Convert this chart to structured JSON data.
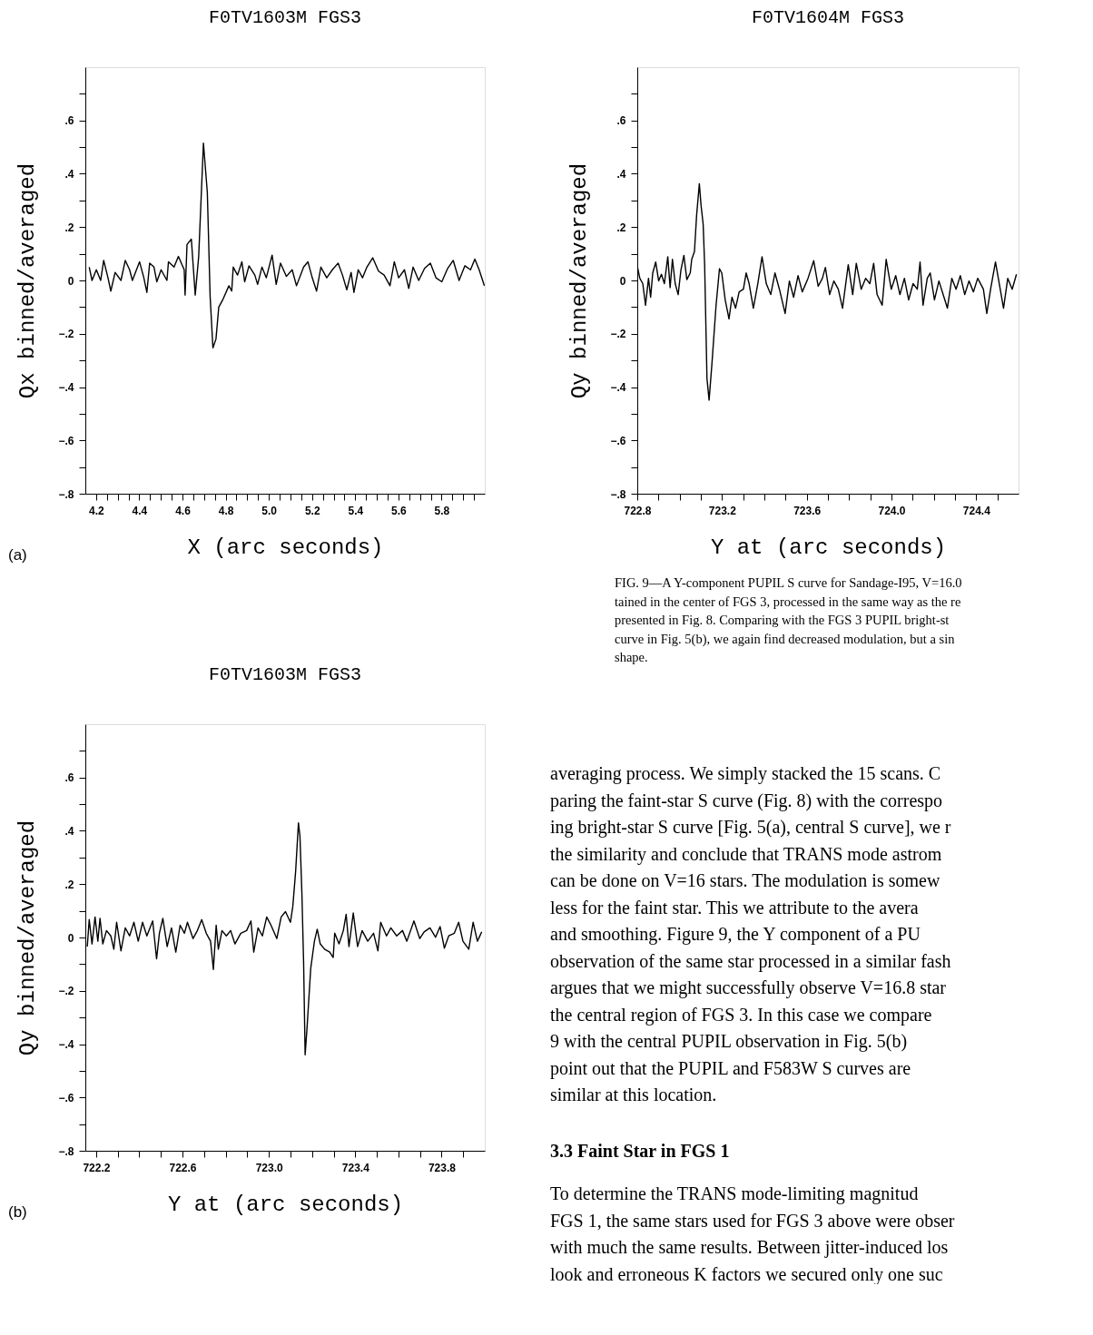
{
  "chart_data": [
    {
      "type": "line",
      "title": "F0TV1603M FGS3",
      "xlabel": "X (arc seconds)",
      "ylabel": "Qx binned/averaged",
      "annotations": [
        "(a)"
      ],
      "xlim": [
        4.15,
        6.0
      ],
      "ylim": [
        -0.8,
        0.8
      ],
      "xticks": [
        4.2,
        {
          "value": 4.25,
          "label": null
        },
        {
          "value": 4.3,
          "label": null
        },
        {
          "value": 4.35,
          "label": null
        },
        4.4,
        {
          "value": 4.45,
          "label": null
        },
        {
          "value": 4.5,
          "label": null
        },
        {
          "value": 4.55,
          "label": null
        },
        4.6,
        {
          "value": 4.65,
          "label": null
        },
        {
          "value": 4.7,
          "label": null
        },
        {
          "value": 4.75,
          "label": null
        },
        4.8,
        {
          "value": 4.85,
          "label": null
        },
        {
          "value": 4.9,
          "label": null
        },
        {
          "value": 4.95,
          "label": null
        },
        {
          "value": 5,
          "label": "5.0"
        },
        {
          "value": 5.05,
          "label": null
        },
        {
          "value": 5.1,
          "label": null
        },
        {
          "value": 5.15,
          "label": null
        },
        5.2,
        {
          "value": 5.25,
          "label": null
        },
        {
          "value": 5.3,
          "label": null
        },
        {
          "value": 5.35,
          "label": null
        },
        5.4,
        {
          "value": 5.45,
          "label": null
        },
        {
          "value": 5.5,
          "label": null
        },
        {
          "value": 5.55,
          "label": null
        },
        5.6,
        {
          "value": 5.65,
          "label": null
        },
        {
          "value": 5.7,
          "label": null
        },
        {
          "value": 5.75,
          "label": null
        },
        5.8,
        {
          "value": 5.85,
          "label": null
        },
        {
          "value": 5.9,
          "label": null
        },
        {
          "value": 5.95,
          "label": null
        }
      ],
      "yticks": [
        {
          "value": -0.8,
          "label": "−.8"
        },
        {
          "value": -0.7,
          "label": null
        },
        {
          "value": -0.6,
          "label": "−.6"
        },
        {
          "value": -0.5,
          "label": null
        },
        {
          "value": -0.4,
          "label": "−.4"
        },
        {
          "value": -0.3,
          "label": null
        },
        {
          "value": -0.2,
          "label": "−.2"
        },
        {
          "value": -0.1,
          "label": null
        },
        {
          "value": 0,
          "label": "0"
        },
        {
          "value": 0.1,
          "label": null
        },
        {
          "value": 0.2,
          "label": ".2"
        },
        {
          "value": 0.3,
          "label": null
        },
        {
          "value": 0.4,
          "label": ".4"
        },
        {
          "value": 0.5,
          "label": null
        },
        {
          "value": 0.6,
          "label": ".6"
        },
        {
          "value": 0.7,
          "label": null
        }
      ],
      "series": [
        {
          "color": "#000000",
          "x": [
            4.168,
            4.181,
            4.201,
            4.221,
            4.235,
            4.255,
            4.268,
            4.288,
            4.315,
            4.335,
            4.355,
            4.368,
            4.401,
            4.421,
            4.435,
            4.448,
            4.468,
            4.481,
            4.501,
            4.528,
            4.535,
            4.561,
            4.581,
            4.608,
            4.612,
            4.621,
            4.641,
            4.659,
            4.675,
            4.697,
            4.715,
            4.728,
            4.741,
            4.755,
            4.768,
            4.788,
            4.815,
            4.828,
            4.835,
            4.855,
            4.875,
            4.888,
            4.908,
            4.935,
            4.948,
            4.968,
            4.988,
            5.015,
            5.034,
            5.054,
            5.081,
            5.108,
            5.128,
            5.161,
            5.181,
            5.201,
            5.221,
            5.241,
            5.268,
            5.294,
            5.321,
            5.341,
            5.361,
            5.381,
            5.394,
            5.414,
            5.434,
            5.454,
            5.481,
            5.508,
            5.534,
            5.561,
            5.581,
            5.601,
            5.628,
            5.648,
            5.668,
            5.694,
            5.721,
            5.748,
            5.774,
            5.801,
            5.828,
            5.854,
            5.881,
            5.908,
            5.934,
            5.954,
            5.974,
            5.998
          ],
          "values": [
            0.05,
            0,
            0.04,
            0,
            0.075,
            0.01,
            -0.04,
            0.03,
            0,
            0.075,
            0.04,
            0,
            0.07,
            0.01,
            -0.045,
            0.065,
            0.05,
            -0.005,
            0.04,
            0,
            0.07,
            0.05,
            0.09,
            0.04,
            -0.055,
            0.135,
            0.155,
            -0.055,
            0.09,
            0.515,
            0.33,
            -0.06,
            -0.253,
            -0.22,
            -0.1,
            -0.07,
            -0.02,
            -0.04,
            0.05,
            0.02,
            0.07,
            -0.005,
            0.055,
            0.02,
            -0.015,
            0.05,
            0.01,
            0.095,
            -0.015,
            0.065,
            0.015,
            0.04,
            -0.02,
            0.05,
            0.07,
            0.01,
            -0.04,
            0.05,
            0.01,
            0.04,
            0.065,
            0.02,
            -0.035,
            0.03,
            -0.045,
            0.04,
            0.01,
            0.05,
            0.085,
            0.035,
            0.02,
            -0.02,
            0.07,
            0.01,
            0.04,
            -0.03,
            0.05,
            0,
            0.045,
            0.065,
            0.01,
            -0.005,
            0.045,
            0.075,
            0,
            0.055,
            0.04,
            0.08,
            0.04,
            -0.02
          ]
        }
      ]
    },
    {
      "type": "line",
      "title": "F0TV1604M FGS3",
      "xlabel": "Y at  (arc seconds)",
      "ylabel": "Qy binned/averaged",
      "annotations": [
        "FIG. 9—A Y-component PUPIL S curve for Sandage-I95, V=16.0\ntained in the center of FGS 3, processed in the same way as the re\npresented in Fig. 8. Comparing with the FGS 3 PUPIL bright-st\ncurve in Fig. 5(b), we again find decreased modulation, but a sin\nshape."
      ],
      "xlim": [
        722.8,
        724.6
      ],
      "ylim": [
        -0.8,
        0.8
      ],
      "xticks": [
        722.8,
        {
          "value": 722.9,
          "label": null
        },
        {
          "value": 723.0,
          "label": null
        },
        {
          "value": 723.1,
          "label": null
        },
        723.2,
        {
          "value": 723.3,
          "label": null
        },
        {
          "value": 723.4,
          "label": null
        },
        {
          "value": 723.5,
          "label": null
        },
        723.6,
        {
          "value": 723.7,
          "label": null
        },
        {
          "value": 723.8,
          "label": null
        },
        {
          "value": 723.9,
          "label": null
        },
        {
          "value": 724,
          "label": "724.0"
        },
        {
          "value": 724.1,
          "label": null
        },
        {
          "value": 724.2,
          "label": null
        },
        {
          "value": 724.3,
          "label": null
        },
        724.4,
        {
          "value": 724.5,
          "label": null
        }
      ],
      "yticks": [
        {
          "value": -0.8,
          "label": "−.8"
        },
        {
          "value": -0.7,
          "label": null
        },
        {
          "value": -0.6,
          "label": "−.6"
        },
        {
          "value": -0.5,
          "label": null
        },
        {
          "value": -0.4,
          "label": "−.4"
        },
        {
          "value": -0.3,
          "label": null
        },
        {
          "value": -0.2,
          "label": "−.2"
        },
        {
          "value": -0.1,
          "label": null
        },
        {
          "value": 0,
          "label": "0"
        },
        {
          "value": 0.1,
          "label": null
        },
        {
          "value": 0.2,
          "label": ".2"
        },
        {
          "value": 0.3,
          "label": null
        },
        {
          "value": 0.4,
          "label": ".4"
        },
        {
          "value": 0.5,
          "label": null
        },
        {
          "value": 0.6,
          "label": ".6"
        },
        {
          "value": 0.7,
          "label": null
        }
      ],
      "series": [
        {
          "color": "#000000",
          "x": [
            722.8,
            722.812,
            722.826,
            722.839,
            722.853,
            722.863,
            722.873,
            722.887,
            722.901,
            722.914,
            722.928,
            722.944,
            722.955,
            722.966,
            722.979,
            722.993,
            723.006,
            723.02,
            723.034,
            723.05,
            723.057,
            723.07,
            723.08,
            723.093,
            723.101,
            723.111,
            723.118,
            723.129,
            723.139,
            723.152,
            723.172,
            723.188,
            723.199,
            723.215,
            723.233,
            723.247,
            723.264,
            723.281,
            723.301,
            723.314,
            723.328,
            723.348,
            723.369,
            723.389,
            723.409,
            723.43,
            723.45,
            723.471,
            723.498,
            723.518,
            723.538,
            723.559,
            723.579,
            723.606,
            723.633,
            723.654,
            723.674,
            723.688,
            723.708,
            723.728,
            723.749,
            723.769,
            723.796,
            723.817,
            723.834,
            723.857,
            723.878,
            723.898,
            723.916,
            723.932,
            723.956,
            723.975,
            723.999,
            724.02,
            724.04,
            724.061,
            724.081,
            724.102,
            724.122,
            724.135,
            724.149,
            724.169,
            724.183,
            724.203,
            724.224,
            724.244,
            724.264,
            724.285,
            724.305,
            724.325,
            724.346,
            724.366,
            724.387,
            724.407,
            724.434,
            724.45,
            724.468,
            724.491,
            724.509,
            724.529,
            724.549,
            724.57,
            724.59
          ],
          "values": [
            0.054,
            0.008,
            -0.012,
            -0.093,
            0.008,
            -0.063,
            0.028,
            0.069,
            -0.002,
            0.023,
            -0.012,
            0.089,
            -0.027,
            0.079,
            -0.012,
            -0.053,
            0.039,
            0.094,
            0.003,
            0.028,
            0.079,
            0.109,
            0.243,
            0.363,
            0.282,
            0.211,
            0.059,
            -0.368,
            -0.449,
            -0.317,
            -0.093,
            0.044,
            0.028,
            -0.073,
            -0.144,
            -0.063,
            -0.104,
            -0.043,
            -0.033,
            0.028,
            -0.012,
            -0.104,
            -0.012,
            0.089,
            -0.012,
            -0.053,
            0.028,
            -0.033,
            -0.124,
            -0.002,
            -0.063,
            0.018,
            -0.043,
            0.008,
            0.074,
            -0.022,
            0.008,
            0.049,
            -0.053,
            -0.002,
            -0.033,
            -0.104,
            0.059,
            -0.053,
            0.064,
            -0.033,
            0.008,
            -0.012,
            0.064,
            -0.053,
            -0.093,
            0.079,
            -0.033,
            0.018,
            -0.053,
            0.008,
            -0.073,
            -0.012,
            -0.033,
            0.069,
            -0.093,
            0.008,
            0.028,
            -0.073,
            -0.002,
            -0.053,
            -0.104,
            0.008,
            -0.033,
            0.018,
            -0.053,
            -0.002,
            -0.043,
            0.008,
            -0.033,
            -0.124,
            -0.033,
            0.069,
            -0.012,
            -0.104,
            0.008,
            -0.033,
            0.023
          ]
        }
      ]
    },
    {
      "type": "line",
      "title": "F0TV1603M FGS3",
      "xlabel": "Y at  (arc seconds)",
      "ylabel": "Qy binned/averaged",
      "annotations": [
        "(b)"
      ],
      "xlim": [
        722.15,
        724.0
      ],
      "ylim": [
        -0.8,
        0.8
      ],
      "xticks": [
        722.2,
        {
          "value": 722.3,
          "label": null
        },
        {
          "value": 722.4,
          "label": null
        },
        {
          "value": 722.5,
          "label": null
        },
        722.6,
        {
          "value": 722.7,
          "label": null
        },
        {
          "value": 722.8,
          "label": null
        },
        {
          "value": 722.9,
          "label": null
        },
        {
          "value": 723,
          "label": "723.0"
        },
        {
          "value": 723.1,
          "label": null
        },
        {
          "value": 723.2,
          "label": null
        },
        {
          "value": 723.3,
          "label": null
        },
        723.4,
        {
          "value": 723.5,
          "label": null
        },
        {
          "value": 723.6,
          "label": null
        },
        {
          "value": 723.7,
          "label": null
        },
        723.8,
        {
          "value": 723.9,
          "label": null
        }
      ],
      "yticks": [
        {
          "value": -0.8,
          "label": "−.8"
        },
        {
          "value": -0.7,
          "label": null
        },
        {
          "value": -0.6,
          "label": "−.6"
        },
        {
          "value": -0.5,
          "label": null
        },
        {
          "value": -0.4,
          "label": "−.4"
        },
        {
          "value": -0.3,
          "label": null
        },
        {
          "value": -0.2,
          "label": "−.2"
        },
        {
          "value": -0.1,
          "label": null
        },
        {
          "value": 0,
          "label": "0"
        },
        {
          "value": 0.1,
          "label": null
        },
        {
          "value": 0.2,
          "label": ".2"
        },
        {
          "value": 0.3,
          "label": null
        },
        {
          "value": 0.4,
          "label": ".4"
        },
        {
          "value": 0.5,
          "label": null
        },
        {
          "value": 0.6,
          "label": ".6"
        },
        {
          "value": 0.7,
          "label": null
        }
      ],
      "series": [
        {
          "color": "#000000",
          "x": [
            722.159,
            722.168,
            722.181,
            722.195,
            722.208,
            722.218,
            722.231,
            722.248,
            722.268,
            722.282,
            722.295,
            722.315,
            722.335,
            722.355,
            722.375,
            722.395,
            722.415,
            722.435,
            722.462,
            722.48,
            722.493,
            722.509,
            722.529,
            722.549,
            722.569,
            722.589,
            722.609,
            722.623,
            722.649,
            722.669,
            722.689,
            722.71,
            722.73,
            722.743,
            722.756,
            722.766,
            722.783,
            722.803,
            722.823,
            722.843,
            722.87,
            722.897,
            722.917,
            722.93,
            722.95,
            722.97,
            722.99,
            723.01,
            723.037,
            723.057,
            723.077,
            723.1,
            723.111,
            723.124,
            723.137,
            723.144,
            723.153,
            723.161,
            723.168,
            723.177,
            723.194,
            723.211,
            723.224,
            723.238,
            723.258,
            723.282,
            723.298,
            723.305,
            723.325,
            723.345,
            723.358,
            723.371,
            723.391,
            723.411,
            723.432,
            723.458,
            723.485,
            723.505,
            723.518,
            723.545,
            723.565,
            723.592,
            723.619,
            723.639,
            723.672,
            723.699,
            723.719,
            723.746,
            723.772,
            723.793,
            723.813,
            723.833,
            723.859,
            723.879,
            723.899,
            723.926,
            723.946,
            723.966,
            723.986
          ],
          "values": [
            -0.034,
            0.067,
            -0.024,
            0.077,
            -0.014,
            0.072,
            -0.024,
            0.026,
            0.006,
            -0.044,
            0.057,
            -0.05,
            0.036,
            0.006,
            0.057,
            -0.014,
            0.057,
            0.006,
            0.062,
            -0.08,
            0.016,
            0.072,
            -0.034,
            0.036,
            -0.055,
            0.046,
            0.016,
            0.057,
            -0.004,
            0.026,
            0.067,
            0.016,
            -0.014,
            -0.12,
            0.046,
            -0.044,
            0.026,
            0.006,
            0.026,
            -0.024,
            0.016,
            0.026,
            0.062,
            -0.055,
            0.036,
            0.006,
            0.077,
            0.046,
            -0.004,
            0.077,
            0.097,
            0.057,
            0.117,
            0.248,
            0.43,
            0.38,
            0.167,
            -0.095,
            -0.44,
            -0.337,
            -0.115,
            -0.014,
            0.031,
            -0.024,
            -0.044,
            -0.055,
            -0.075,
            0.016,
            -0.024,
            0.026,
            0.087,
            -0.034,
            0.092,
            -0.034,
            0.026,
            -0.014,
            0.016,
            -0.05,
            0.057,
            0.006,
            0.036,
            0.006,
            0.026,
            -0.014,
            0.062,
            -0.004,
            0.021,
            0.036,
            0.001,
            0.041,
            -0.04,
            0.006,
            0.016,
            0.057,
            -0.014,
            -0.044,
            0.057,
            -0.014,
            0.021
          ]
        }
      ]
    },
    {
      "type": "other",
      "title": "3.3 Faint Star in FGS 1",
      "annotations": [
        "averaging process. We simply stacked the 15 scans. C\nparing the faint-star S curve (Fig. 8) with the correspo\ning bright-star S curve [Fig. 5(a), central S curve], we r\nthe similarity and conclude that TRANS mode astrom\ncan be done on V=16 stars. The modulation is somew\nless for the faint star. This we attribute to the avera\nand smoothing. Figure 9, the Y component of a PU\nobservation of the same star processed in a similar fash\nargues that we might successfully observe V=16.8 star\nthe central region of FGS 3. In this case we compare\n9 with the central PUPIL observation in Fig. 5(b)\npoint out that the PUPIL and F583W S curves are\nsimilar at this location.",
        "    To determine the TRANS mode-limiting magnitud\nFGS 1, the same stars used for FGS 3 above were obser\nwith much the same results. Between jitter-induced los\nlook and erroneous K factors we secured only one suc"
      ]
    }
  ]
}
